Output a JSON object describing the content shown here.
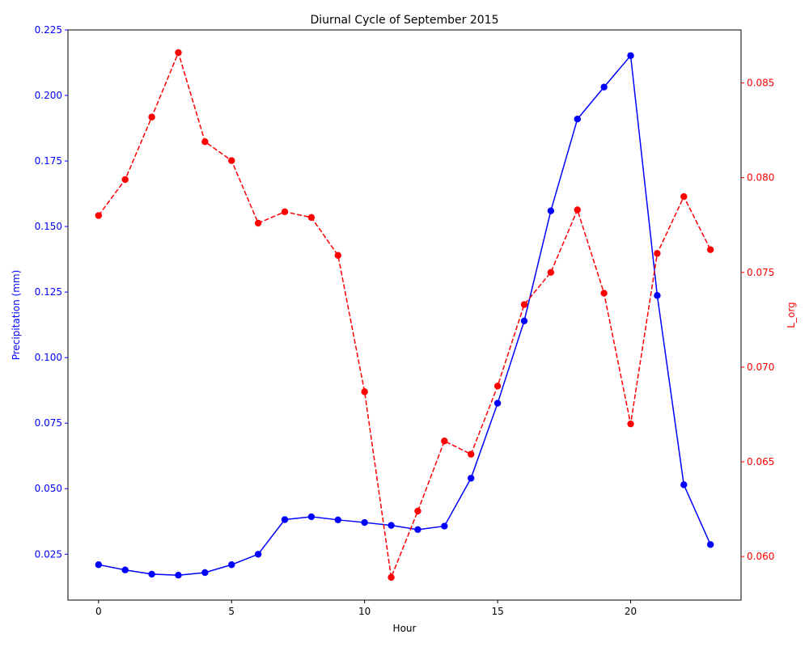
{
  "chart_data": {
    "type": "line",
    "title": "Diurnal Cycle of September 2015",
    "xlabel": "Hour",
    "ylabel_left": "Precipitation (mm)",
    "ylabel_right": "L_org",
    "xlim": [
      -1.15,
      24.15
    ],
    "ylim_left": [
      0.0075,
      0.225
    ],
    "ylim_right": [
      0.0577,
      0.0878
    ],
    "x_ticks": [
      0,
      5,
      10,
      15,
      20
    ],
    "x_tick_labels": [
      "0",
      "5",
      "10",
      "15",
      "20"
    ],
    "y_left_ticks": [
      0.025,
      0.05,
      0.075,
      0.1,
      0.125,
      0.15,
      0.175,
      0.2,
      0.225
    ],
    "y_left_tick_labels": [
      "0.025",
      "0.050",
      "0.075",
      "0.100",
      "0.125",
      "0.150",
      "0.175",
      "0.200",
      "0.225"
    ],
    "y_right_ticks": [
      0.06,
      0.065,
      0.07,
      0.075,
      0.08,
      0.085
    ],
    "y_right_tick_labels": [
      "0.060",
      "0.065",
      "0.070",
      "0.075",
      "0.080",
      "0.085"
    ],
    "grid": false,
    "x": [
      0,
      1,
      2,
      3,
      4,
      5,
      6,
      7,
      8,
      9,
      10,
      11,
      12,
      13,
      14,
      15,
      16,
      17,
      18,
      19,
      20,
      21,
      22,
      23
    ],
    "series": [
      {
        "axis": "left",
        "color": "#0000ff",
        "style": "solid",
        "marker": "circle",
        "values": [
          0.021,
          0.019,
          0.0174,
          0.017,
          0.018,
          0.021,
          0.025,
          0.0382,
          0.0393,
          0.0381,
          0.0371,
          0.036,
          0.0344,
          0.0357,
          0.054,
          0.0826,
          0.114,
          0.156,
          0.191,
          0.2032,
          0.2152,
          0.1237,
          0.0515,
          0.0287
        ]
      },
      {
        "axis": "right",
        "color": "#ff0000",
        "style": "dashed",
        "marker": "circle",
        "values": [
          0.078,
          0.0799,
          0.0832,
          0.0866,
          0.0819,
          0.0809,
          0.0776,
          0.0782,
          0.0779,
          0.0759,
          0.0687,
          0.0589,
          0.0624,
          0.0661,
          0.0654,
          0.069,
          0.0733,
          0.075,
          0.0783,
          0.0739,
          0.067,
          0.076,
          0.079,
          0.0762
        ]
      }
    ]
  }
}
